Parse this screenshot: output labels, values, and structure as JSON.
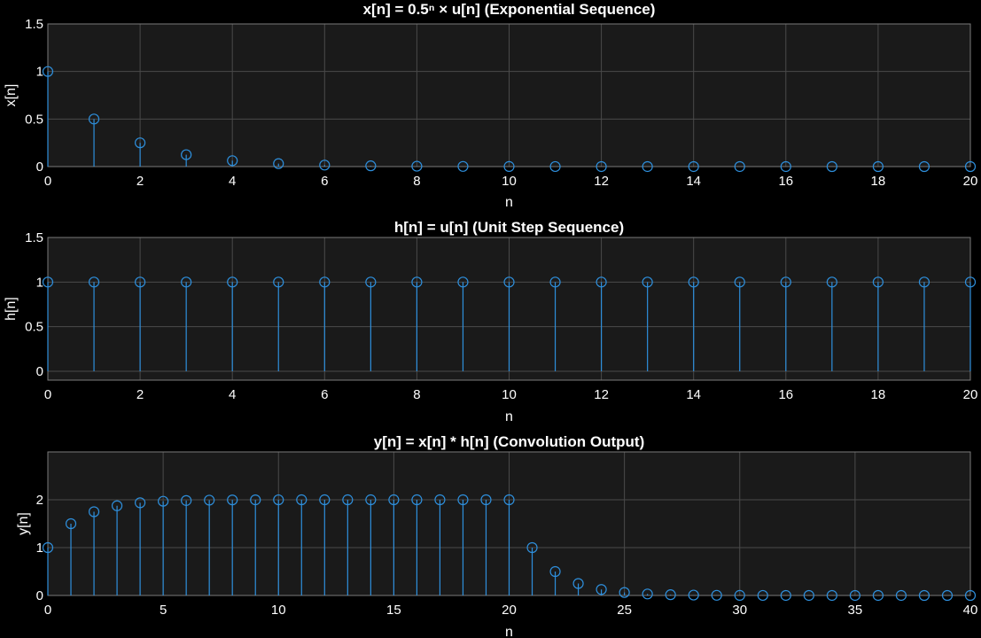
{
  "figure": {
    "background": "#000000",
    "axes_background": "#1a1a1a",
    "grid_color": "#4a4a4a",
    "text_color": "#ffffff"
  },
  "chart_data": [
    {
      "id": "x",
      "type": "stem",
      "title": "x[n]  =  0.5ⁿ  × u[n]  (Exponential  Sequence)",
      "xlabel": "n",
      "ylabel": "x[n]",
      "xlim": [
        0,
        20
      ],
      "ylim": [
        0,
        1.5
      ],
      "xticks": [
        0,
        2,
        4,
        6,
        8,
        10,
        12,
        14,
        16,
        18,
        20
      ],
      "yticks": [
        0,
        0.5,
        1,
        1.5
      ],
      "ytick_labels": [
        "0",
        "0.5",
        "1",
        "1.5"
      ],
      "grid": true,
      "color": "#2e8fdc",
      "x": [
        0,
        1,
        2,
        3,
        4,
        5,
        6,
        7,
        8,
        9,
        10,
        11,
        12,
        13,
        14,
        15,
        16,
        17,
        18,
        19,
        20
      ],
      "y": [
        1,
        0.5,
        0.25,
        0.125,
        0.0625,
        0.03125,
        0.015625,
        0.0078125,
        0.00390625,
        0.001953125,
        0.0009765625,
        0.00048828125,
        0.000244140625,
        0.0001220703125,
        6.103515625e-05,
        3.0517578125e-05,
        1.52587890625e-05,
        7.62939453125e-06,
        3.814697265625e-06,
        1.9073486328125e-06,
        9.5367431640625e-07
      ]
    },
    {
      "id": "h",
      "type": "stem",
      "title": "h[n] = u[n] (Unit Step Sequence)",
      "xlabel": "n",
      "ylabel": "h[n]",
      "xlim": [
        0,
        20
      ],
      "ylim": [
        -0.1,
        1.5
      ],
      "xticks": [
        0,
        2,
        4,
        6,
        8,
        10,
        12,
        14,
        16,
        18,
        20
      ],
      "yticks": [
        0,
        0.5,
        1,
        1.5
      ],
      "ytick_labels": [
        "0",
        "0.5",
        "1",
        "1.5"
      ],
      "grid": true,
      "color": "#2e8fdc",
      "x": [
        0,
        1,
        2,
        3,
        4,
        5,
        6,
        7,
        8,
        9,
        10,
        11,
        12,
        13,
        14,
        15,
        16,
        17,
        18,
        19,
        20
      ],
      "y": [
        1,
        1,
        1,
        1,
        1,
        1,
        1,
        1,
        1,
        1,
        1,
        1,
        1,
        1,
        1,
        1,
        1,
        1,
        1,
        1,
        1
      ]
    },
    {
      "id": "y",
      "type": "stem",
      "title": "y[n] = x[n] * h[n] (Convolution Output)",
      "xlabel": "n",
      "ylabel": "y[n]",
      "xlim": [
        0,
        40
      ],
      "ylim": [
        0,
        3
      ],
      "xticks": [
        0,
        5,
        10,
        15,
        20,
        25,
        30,
        35,
        40
      ],
      "yticks": [
        0,
        1,
        2
      ],
      "ytick_labels": [
        "0",
        "1",
        "2"
      ],
      "grid": true,
      "color": "#2e8fdc",
      "x": [
        0,
        1,
        2,
        3,
        4,
        5,
        6,
        7,
        8,
        9,
        10,
        11,
        12,
        13,
        14,
        15,
        16,
        17,
        18,
        19,
        20,
        21,
        22,
        23,
        24,
        25,
        26,
        27,
        28,
        29,
        30,
        31,
        32,
        33,
        34,
        35,
        36,
        37,
        38,
        39,
        40
      ],
      "y": [
        1,
        1.5,
        1.75,
        1.875,
        1.9375,
        1.96875,
        1.984,
        1.992,
        1.996,
        1.998,
        1.999,
        1.9995,
        1.9998,
        1.9999,
        1.99994,
        1.99997,
        1.99998,
        1.99999,
        2,
        2,
        2,
        1,
        0.5,
        0.25,
        0.125,
        0.0625,
        0.03125,
        0.015625,
        0.0078125,
        0.0039063,
        0.0019531,
        0.00097656,
        0.00048828,
        0.00024414,
        0.00012207,
        6.1035e-05,
        3.0518e-05,
        1.5259e-05,
        7.6294e-06,
        3.8147e-06,
        1.9073e-06
      ]
    }
  ]
}
